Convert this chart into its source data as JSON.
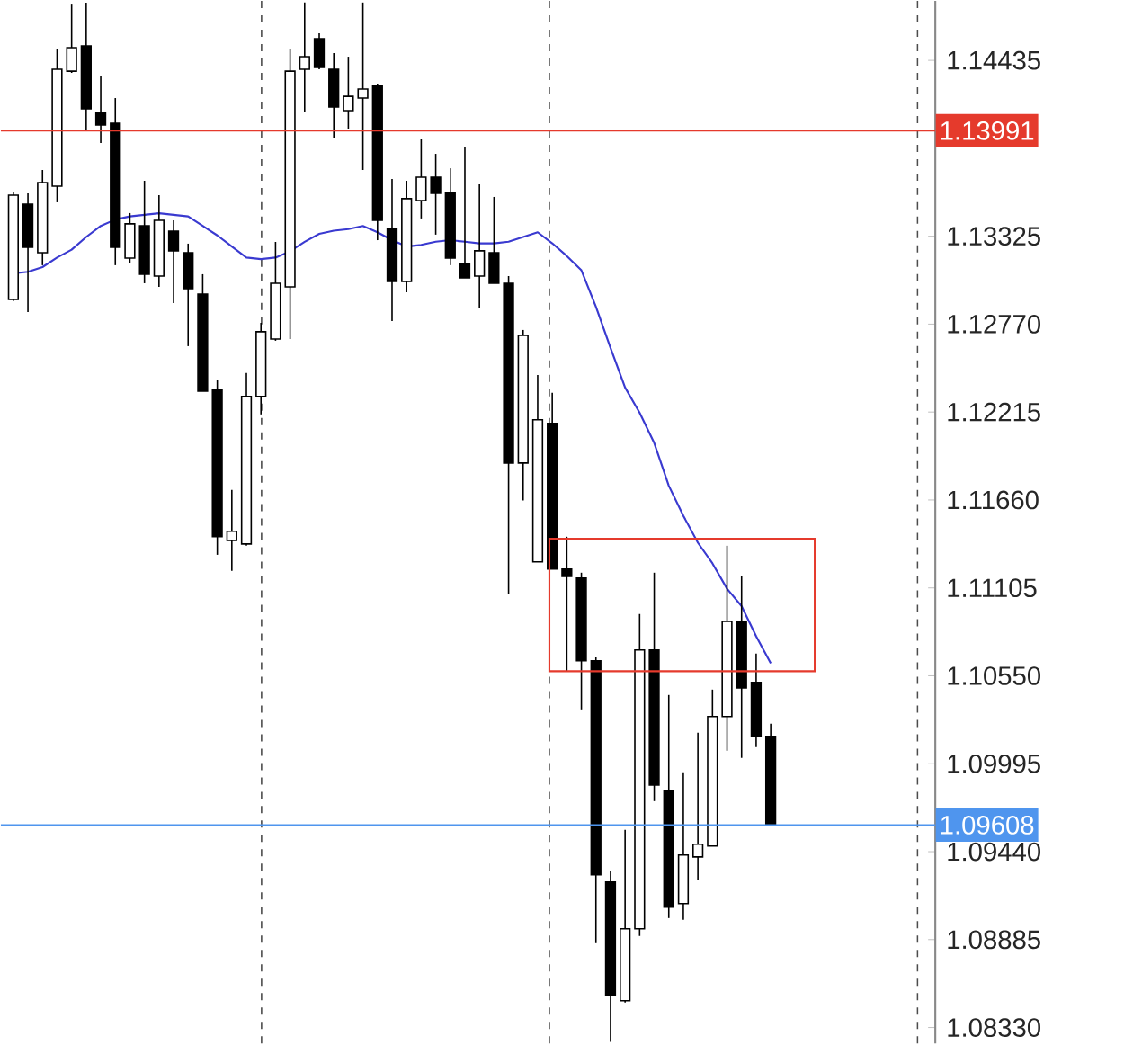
{
  "chart_data": {
    "type": "candlestick",
    "categories": [
      null,
      null,
      null,
      null,
      null,
      null,
      null,
      null,
      null,
      null,
      null,
      null,
      null,
      null,
      null,
      null,
      null,
      null,
      null,
      null,
      null,
      null,
      null,
      null,
      null,
      null,
      null,
      null,
      null,
      null,
      null,
      null,
      null,
      null,
      null,
      null,
      null,
      null,
      null,
      null,
      null,
      null,
      null,
      null,
      null,
      null,
      null,
      null,
      null,
      null,
      null,
      null,
      null
    ],
    "ohlc": [
      [
        1.12926,
        1.13607,
        1.12915,
        1.13584
      ],
      [
        1.13527,
        1.13596,
        1.12846,
        1.13255
      ],
      [
        1.13221,
        1.13743,
        1.13142,
        1.13664
      ],
      [
        1.13641,
        1.14504,
        1.13539,
        1.14379
      ],
      [
        1.14367,
        1.14787,
        1.14356,
        1.14515
      ],
      [
        1.14526,
        1.14799,
        1.13993,
        1.14129
      ],
      [
        1.14106,
        1.14333,
        1.13913,
        1.14027
      ],
      [
        1.14038,
        1.14197,
        1.13142,
        1.13255
      ],
      [
        1.13187,
        1.13471,
        1.13153,
        1.13403
      ],
      [
        1.13391,
        1.13675,
        1.13028,
        1.13085
      ],
      [
        1.13073,
        1.13584,
        1.13005,
        1.13425
      ],
      [
        1.13357,
        1.13425,
        1.12903,
        1.13233
      ],
      [
        1.13221,
        1.13278,
        1.12631,
        1.12994
      ],
      [
        1.1296,
        1.13085,
        1.12347,
        1.12347
      ],
      [
        1.12358,
        1.12415,
        1.11314,
        1.11428
      ],
      [
        1.11405,
        1.11723,
        1.11212,
        1.11462
      ],
      [
        1.11382,
        1.12461,
        1.11371,
        1.12313
      ],
      [
        1.12313,
        1.12778,
        1.122,
        1.12722
      ],
      [
        1.12676,
        1.13289,
        1.12665,
        1.13028
      ],
      [
        1.13005,
        1.14504,
        1.12676,
        1.14367
      ],
      [
        1.14379,
        1.148,
        1.14106,
        1.14458
      ],
      [
        1.14572,
        1.14606,
        1.14379,
        1.1439
      ],
      [
        1.14379,
        1.14481,
        1.13947,
        1.1414
      ],
      [
        1.14118,
        1.14458,
        1.14004,
        1.14208
      ],
      [
        1.14197,
        1.148,
        1.13743,
        1.14254
      ],
      [
        1.14277,
        1.14288,
        1.133,
        1.13425
      ],
      [
        1.13369,
        1.13686,
        1.1279,
        1.13039
      ],
      [
        1.13039,
        1.13675,
        1.12971,
        1.13562
      ],
      [
        1.1355,
        1.13936,
        1.13437,
        1.13698
      ],
      [
        1.13698,
        1.13845,
        1.13335,
        1.13596
      ],
      [
        1.13596,
        1.13754,
        1.13142,
        1.13187
      ],
      [
        1.13153,
        1.13891,
        1.13062,
        1.13062
      ],
      [
        1.13073,
        1.13652,
        1.12869,
        1.13233
      ],
      [
        1.13221,
        1.13573,
        1.13028,
        1.13028
      ],
      [
        1.13028,
        1.13073,
        1.11065,
        1.11893
      ],
      [
        1.11893,
        1.12733,
        1.11657,
        1.12699
      ],
      [
        1.11269,
        1.12449,
        1.11269,
        1.12166
      ],
      [
        1.12143,
        1.12336,
        1.11224,
        1.11224
      ],
      [
        1.11224,
        1.11428,
        1.10576,
        1.11178
      ],
      [
        1.11167,
        1.11201,
        1.10338,
        1.10645
      ],
      [
        1.10645,
        1.10667,
        1.08863,
        1.09294
      ],
      [
        1.09248,
        1.09317,
        1.0824,
        1.08533
      ],
      [
        1.08499,
        1.09578,
        1.08488,
        1.08953
      ],
      [
        1.08953,
        1.1094,
        1.08908,
        1.10713
      ],
      [
        1.10713,
        1.11201,
        1.09759,
        1.09861
      ],
      [
        1.09827,
        1.10429,
        1.09021,
        1.0909
      ],
      [
        1.09112,
        1.09941,
        1.0901,
        1.09419
      ],
      [
        1.09407,
        1.10191,
        1.0926,
        1.09487
      ],
      [
        1.09476,
        1.10463,
        1.09476,
        1.10293
      ],
      [
        1.10293,
        1.11371,
        1.10077,
        1.10894
      ],
      [
        1.10894,
        1.11178,
        1.10032,
        1.10474
      ],
      [
        1.10508,
        1.1069,
        1.101,
        1.10168
      ],
      [
        1.10168,
        1.10247,
        1.09608,
        1.09608
      ]
    ],
    "color": "#000000",
    "series": [
      {
        "type": "line",
        "color": "#3a3ad0",
        "values": [
          1.1309,
          1.131,
          1.1313,
          1.1319,
          1.1324,
          1.1332,
          1.1339,
          1.1343,
          1.1345,
          1.1346,
          1.1347,
          1.1346,
          1.1345,
          1.1339,
          1.1333,
          1.1326,
          1.1319,
          1.1318,
          1.1319,
          1.1323,
          1.1329,
          1.1334,
          1.1336,
          1.1337,
          1.1339,
          1.1335,
          1.133,
          1.1326,
          1.1327,
          1.1329,
          1.133,
          1.1329,
          1.1328,
          1.1328,
          1.1329,
          1.1332,
          1.1335,
          1.1328,
          1.132,
          1.1311,
          1.1288,
          1.1262,
          1.1237,
          1.1221,
          1.1202,
          1.1175,
          1.1156,
          1.1139,
          1.1126,
          1.111,
          1.1099,
          1.108,
          1.1063
        ]
      }
    ],
    "ylim": [
      1.0823,
      1.1481
    ],
    "yticks": [
      {
        "value": 1.0833,
        "label": "1.08330"
      },
      {
        "value": 1.08885,
        "label": "1.08885"
      },
      {
        "value": 1.0944,
        "label": "1.09440"
      },
      {
        "value": 1.09995,
        "label": "1.09995"
      },
      {
        "value": 1.1055,
        "label": "1.10550"
      },
      {
        "value": 1.11105,
        "label": "1.11105"
      },
      {
        "value": 1.1166,
        "label": "1.11660"
      },
      {
        "value": 1.12215,
        "label": "1.12215"
      },
      {
        "value": 1.1277,
        "label": "1.12770"
      },
      {
        "value": 1.13325,
        "label": "1.13325"
      },
      {
        "value": 1.14435,
        "label": "1.14435"
      }
    ],
    "ref_lines": [
      {
        "axis": "y",
        "value": 1.13991,
        "label": "1.13991",
        "color": "#e53a2c"
      },
      {
        "axis": "y",
        "value": 1.09608,
        "label": "1.09608",
        "color": "#4f95ee"
      }
    ],
    "tick_labels": "y",
    "grid": false
  }
}
